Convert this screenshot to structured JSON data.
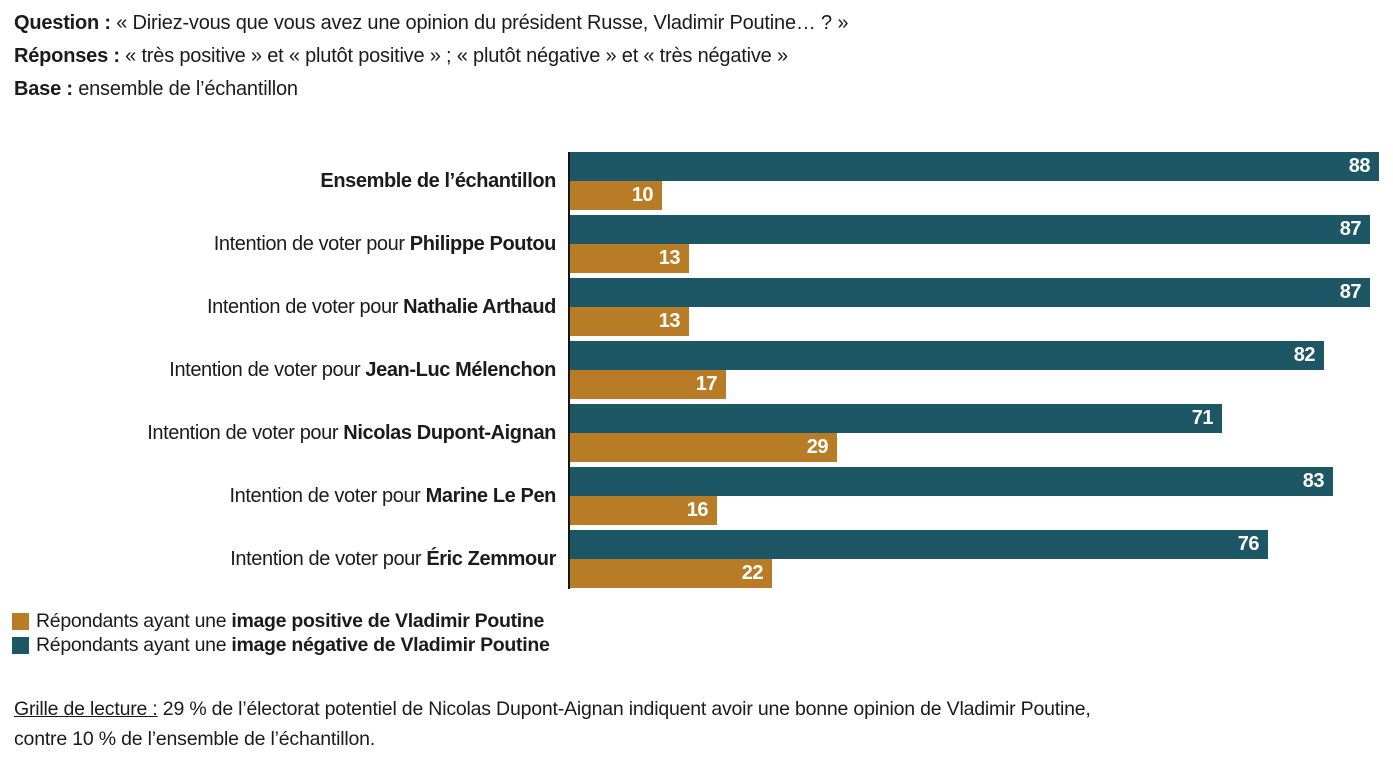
{
  "header": {
    "lines": [
      {
        "label": "Question :",
        "text": " « Diriez-vous que vous avez une opinion du président Russe, Vladimir Poutine… ? »"
      },
      {
        "label": "Réponses :",
        "text": " « très positive » et « plutôt positive » ; « plutôt négative » et « très négative »"
      },
      {
        "label": "Base :",
        "text": " ensemble de l’échantillon"
      }
    ]
  },
  "chart_data": {
    "type": "bar",
    "orientation": "horizontal",
    "unit": "%",
    "xlim": [
      0,
      100
    ],
    "grid": false,
    "legend_position": "bottom-left",
    "categories": [
      {
        "prefix": "",
        "name": "Ensemble de l’échantillon"
      },
      {
        "prefix": "Intention de voter pour ",
        "name": "Philippe Poutou"
      },
      {
        "prefix": "Intention de voter pour ",
        "name": "Nathalie Arthaud"
      },
      {
        "prefix": "Intention de voter pour ",
        "name": "Jean-Luc Mélenchon"
      },
      {
        "prefix": "Intention de voter pour ",
        "name": "Nicolas Dupont-Aignan"
      },
      {
        "prefix": "Intention de voter pour ",
        "name": "Marine Le Pen"
      },
      {
        "prefix": "Intention de voter pour ",
        "name": "Éric Zemmour"
      }
    ],
    "series": [
      {
        "name": "Répondants ayant une image positive de Vladimir Poutine",
        "color": "#b87c27",
        "values": [
          10,
          13,
          13,
          17,
          29,
          16,
          22
        ]
      },
      {
        "name": "Répondants ayant une image négative de Vladimir Poutine",
        "color": "#1d5766",
        "values": [
          88,
          87,
          87,
          82,
          71,
          83,
          76
        ]
      }
    ]
  },
  "legend": {
    "items": [
      {
        "color": "#b87c27",
        "prefix": "Répondants ayant une ",
        "bold": "image positive de Vladimir Poutine"
      },
      {
        "color": "#1d5766",
        "prefix": "Répondants ayant une ",
        "bold": "image négative de Vladimir Poutine"
      }
    ]
  },
  "footer": {
    "label": "Grille de lecture :",
    "line1": " 29 % de l’électorat potentiel de Nicolas Dupont-Aignan indiquent avoir une bonne opinion de Vladimir Poutine,",
    "line2": "contre 10 % de l’ensemble de l’échantillon."
  }
}
